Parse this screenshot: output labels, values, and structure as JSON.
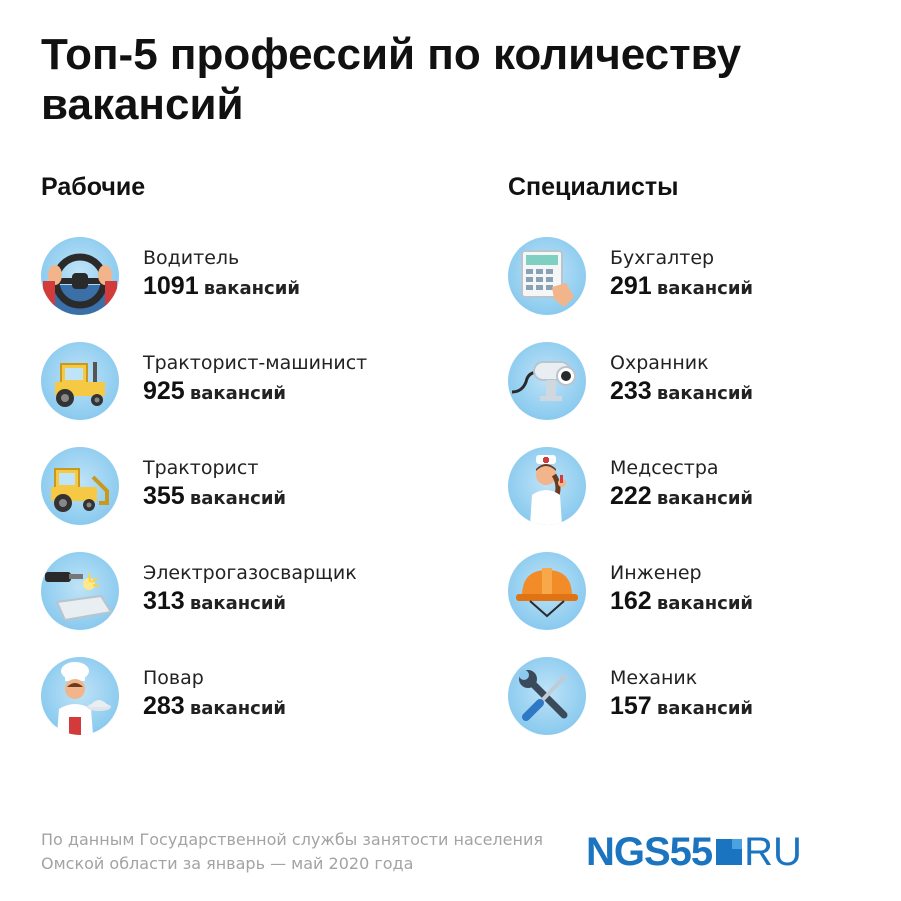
{
  "title": "Топ-5 профессий по количеству вакансий",
  "columns": [
    {
      "heading": "Рабочие",
      "items": [
        {
          "job": "Водитель",
          "count": "1091",
          "unit": "вакансий",
          "icon": "steering-wheel-icon"
        },
        {
          "job": "Тракторист-машинист",
          "count": "925",
          "unit": "вакансий",
          "icon": "tractor-icon"
        },
        {
          "job": "Тракторист",
          "count": "355",
          "unit": "вакансий",
          "icon": "loader-tractor-icon"
        },
        {
          "job": "Электрогазосварщик",
          "count": "313",
          "unit": "вакансий",
          "icon": "welding-torch-icon"
        },
        {
          "job": "Повар",
          "count": "283",
          "unit": "вакансий",
          "icon": "chef-icon"
        }
      ]
    },
    {
      "heading": "Специалисты",
      "items": [
        {
          "job": "Бухгалтер",
          "count": "291",
          "unit": "вакансий",
          "icon": "calculator-icon"
        },
        {
          "job": "Охранник",
          "count": "233",
          "unit": "вакансий",
          "icon": "security-camera-icon"
        },
        {
          "job": "Медсестра",
          "count": "222",
          "unit": "вакансий",
          "icon": "nurse-icon"
        },
        {
          "job": "Инженер",
          "count": "162",
          "unit": "вакансий",
          "icon": "hard-hat-icon"
        },
        {
          "job": "Механик",
          "count": "157",
          "unit": "вакансий",
          "icon": "wrench-screwdriver-icon"
        }
      ]
    }
  ],
  "footnote": "По данным Государственной службы занятости населения Омской области за январь — май 2020 года",
  "logo": {
    "left": "NGS55",
    "right": "RU"
  },
  "colors": {
    "icon_bg": "#8ccbef",
    "logo_blue": "#1b74c0",
    "footnote_gray": "#a3a3a3"
  }
}
